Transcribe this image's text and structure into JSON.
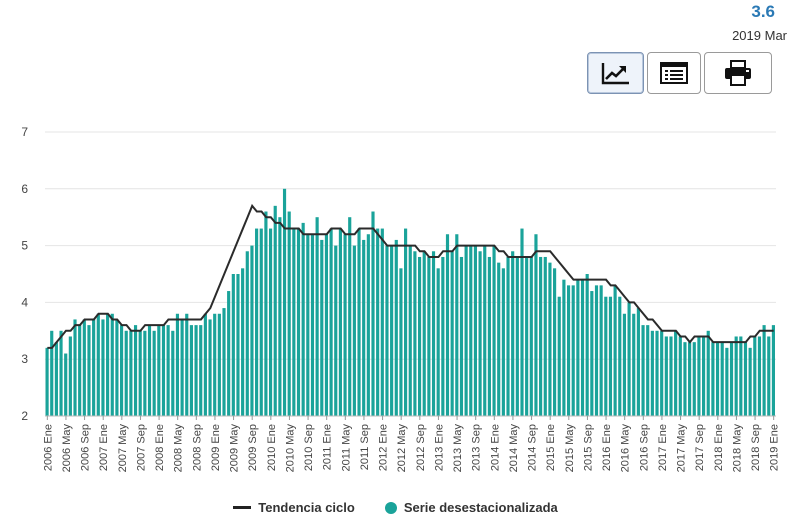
{
  "header": {
    "latest_value": "3.6",
    "latest_period": "2019 Mar"
  },
  "toolbar": {
    "buttons": [
      "chart-line-icon",
      "table-list-icon",
      "printer-icon"
    ]
  },
  "colors": {
    "bars": "#1aa39a",
    "trend": "#2b2b2b",
    "grid": "#e4e4e4",
    "accent": "#2a79b5"
  },
  "legend": {
    "trend_label": "Tendencia ciclo",
    "series_label": "Serie desestacionalizada"
  },
  "chart_data": {
    "type": "bar",
    "ylim": [
      2,
      7
    ],
    "yticks": [
      "2",
      "3",
      "4",
      "5",
      "6",
      "7"
    ],
    "grid": true,
    "legend_position": "bottom",
    "xtick_labels": [
      "2006 Ene",
      "2006 May",
      "2006 Sep",
      "2007 Ene",
      "2007 May",
      "2007 Sep",
      "2008 Ene",
      "2008 May",
      "2008 Sep",
      "2009 Ene",
      "2009 May",
      "2009 Sep",
      "2010 Ene",
      "2010 May",
      "2010 Sep",
      "2011 Ene",
      "2011 May",
      "2011 Sep",
      "2012 Ene",
      "2012 May",
      "2012 Sep",
      "2013 Ene",
      "2013 May",
      "2013 Sep",
      "2014 Ene",
      "2014 May",
      "2014 Sep",
      "2015 Ene",
      "2015 May",
      "2015 Sep",
      "2016 Ene",
      "2016 May",
      "2016 Sep",
      "2017 Ene",
      "2017 May",
      "2017 Sep",
      "2018 Ene",
      "2018 May",
      "2018 Sep",
      "2019 Ene"
    ],
    "series": [
      {
        "name": "Serie desestacionalizada",
        "type": "bar",
        "values": [
          3.2,
          3.5,
          3.3,
          3.5,
          3.1,
          3.4,
          3.7,
          3.6,
          3.7,
          3.6,
          3.7,
          3.8,
          3.7,
          3.8,
          3.8,
          3.7,
          3.6,
          3.5,
          3.5,
          3.6,
          3.5,
          3.5,
          3.6,
          3.5,
          3.6,
          3.6,
          3.6,
          3.5,
          3.8,
          3.7,
          3.8,
          3.6,
          3.6,
          3.6,
          3.8,
          3.7,
          3.8,
          3.8,
          3.9,
          4.2,
          4.5,
          4.5,
          4.6,
          4.9,
          5.0,
          5.3,
          5.3,
          5.6,
          5.3,
          5.7,
          5.5,
          6.0,
          5.6,
          5.3,
          5.3,
          5.4,
          5.2,
          5.2,
          5.5,
          5.1,
          5.2,
          5.3,
          5.0,
          5.3,
          5.2,
          5.5,
          5.0,
          5.3,
          5.1,
          5.2,
          5.6,
          5.3,
          5.3,
          5.0,
          5.0,
          5.1,
          4.6,
          5.3,
          5.0,
          4.9,
          4.8,
          4.9,
          4.8,
          4.9,
          4.6,
          4.8,
          5.2,
          4.9,
          5.2,
          4.8,
          5.0,
          5.0,
          5.0,
          4.9,
          5.0,
          4.8,
          5.0,
          4.7,
          4.6,
          4.8,
          4.9,
          4.8,
          5.3,
          4.8,
          4.8,
          5.2,
          4.8,
          4.8,
          4.7,
          4.6,
          4.1,
          4.4,
          4.3,
          4.3,
          4.4,
          4.4,
          4.5,
          4.2,
          4.3,
          4.3,
          4.1,
          4.1,
          4.3,
          4.1,
          3.8,
          4.0,
          3.8,
          3.9,
          3.6,
          3.6,
          3.5,
          3.5,
          3.5,
          3.4,
          3.4,
          3.5,
          3.4,
          3.3,
          3.3,
          3.3,
          3.4,
          3.4,
          3.5,
          3.3,
          3.3,
          3.3,
          3.2,
          3.3,
          3.4,
          3.4,
          3.3,
          3.2,
          3.4,
          3.4,
          3.6,
          3.4,
          3.6
        ]
      },
      {
        "name": "Tendencia ciclo",
        "type": "line",
        "values": [
          3.2,
          3.2,
          3.3,
          3.4,
          3.5,
          3.5,
          3.6,
          3.6,
          3.7,
          3.7,
          3.7,
          3.8,
          3.8,
          3.8,
          3.7,
          3.7,
          3.6,
          3.6,
          3.5,
          3.5,
          3.5,
          3.6,
          3.6,
          3.6,
          3.6,
          3.6,
          3.7,
          3.7,
          3.7,
          3.7,
          3.7,
          3.7,
          3.7,
          3.7,
          3.8,
          3.9,
          4.1,
          4.3,
          4.5,
          4.7,
          4.9,
          5.1,
          5.3,
          5.5,
          5.7,
          5.6,
          5.6,
          5.5,
          5.5,
          5.4,
          5.4,
          5.3,
          5.3,
          5.3,
          5.3,
          5.2,
          5.2,
          5.2,
          5.2,
          5.2,
          5.2,
          5.3,
          5.3,
          5.3,
          5.2,
          5.2,
          5.2,
          5.3,
          5.3,
          5.3,
          5.3,
          5.2,
          5.1,
          5.0,
          5.0,
          5.0,
          5.0,
          5.0,
          5.0,
          5.0,
          4.9,
          4.9,
          4.8,
          4.8,
          4.8,
          4.9,
          4.9,
          4.9,
          5.0,
          5.0,
          5.0,
          5.0,
          5.0,
          5.0,
          5.0,
          5.0,
          5.0,
          4.9,
          4.9,
          4.8,
          4.8,
          4.8,
          4.8,
          4.8,
          4.8,
          4.9,
          4.9,
          4.9,
          4.9,
          4.8,
          4.7,
          4.6,
          4.5,
          4.4,
          4.4,
          4.4,
          4.4,
          4.4,
          4.4,
          4.4,
          4.4,
          4.3,
          4.3,
          4.2,
          4.1,
          4.0,
          4.0,
          3.9,
          3.8,
          3.7,
          3.7,
          3.6,
          3.5,
          3.5,
          3.5,
          3.5,
          3.4,
          3.4,
          3.3,
          3.4,
          3.4,
          3.4,
          3.4,
          3.3,
          3.3,
          3.3,
          3.3,
          3.3,
          3.3,
          3.3,
          3.3,
          3.4,
          3.4,
          3.5,
          3.5,
          3.5,
          3.5
        ]
      }
    ]
  }
}
